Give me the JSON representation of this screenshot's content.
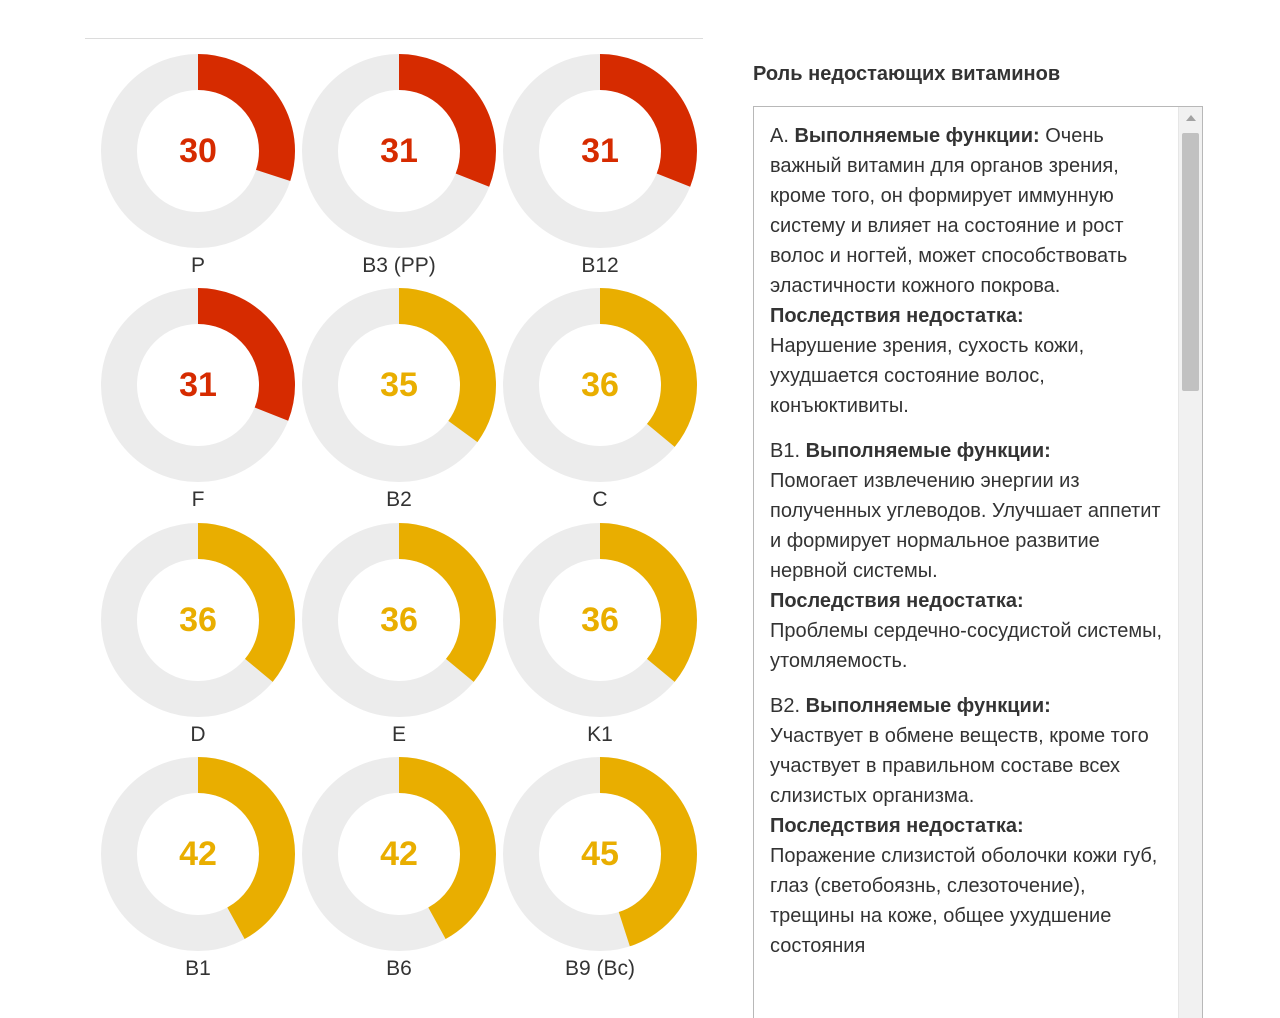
{
  "colors": {
    "low": "#d62b00",
    "mid": "#e9ae00",
    "track": "#ececec"
  },
  "chart_data": {
    "type": "donut",
    "series": [
      {
        "label": "P",
        "value": 30,
        "level": "low"
      },
      {
        "label": "B3 (PP)",
        "value": 31,
        "level": "low"
      },
      {
        "label": "B12",
        "value": 31,
        "level": "low"
      },
      {
        "label": "F",
        "value": 31,
        "level": "low"
      },
      {
        "label": "B2",
        "value": 35,
        "level": "mid"
      },
      {
        "label": "C",
        "value": 36,
        "level": "mid"
      },
      {
        "label": "D",
        "value": 36,
        "level": "mid"
      },
      {
        "label": "E",
        "value": 36,
        "level": "mid"
      },
      {
        "label": "K1",
        "value": 36,
        "level": "mid"
      },
      {
        "label": "B1",
        "value": 42,
        "level": "mid"
      },
      {
        "label": "B6",
        "value": 42,
        "level": "mid"
      },
      {
        "label": "B9 (Bc)",
        "value": 45,
        "level": "mid"
      }
    ],
    "max": 100
  },
  "panel": {
    "title": "Роль недостающих витаминов",
    "entries": [
      {
        "vitamin": "A.",
        "functions_label": "Выполняемые функции:",
        "functions_text": "Очень важный витамин для органов зрения, кроме того, он формирует иммунную систему и влияет на состояние и рост волос и ногтей, может способствовать эластичности кожного покрова.",
        "consequences_label": "Последствия недостатка:",
        "consequences_text": "Нарушение зрения, сухость кожи, ухудшается состояние волос, конъюктивиты."
      },
      {
        "vitamin": "B1.",
        "functions_label": "Выполняемые функции:",
        "functions_text": "Помогает извлечению энергии из полученных углеводов. Улучшает аппетит и формирует нормальное развитие нервной системы.",
        "consequences_label": "Последствия недостатка:",
        "consequences_text": "Проблемы сердечно-сосудистой системы, утомляемость."
      },
      {
        "vitamin": "B2.",
        "functions_label": "Выполняемые функции:",
        "functions_text": "Участвует в обмене веществ, кроме того участвует в правильном составе всех слизистых организма.",
        "consequences_label": "Последствия недостатка:",
        "consequences_text": "Поражение слизистой оболочки кожи губ, глаз (светобоязнь, слезоточение), трещины на коже, общее ухудшение состояния"
      }
    ],
    "scroll_up_icon": "triangle-up-icon"
  }
}
